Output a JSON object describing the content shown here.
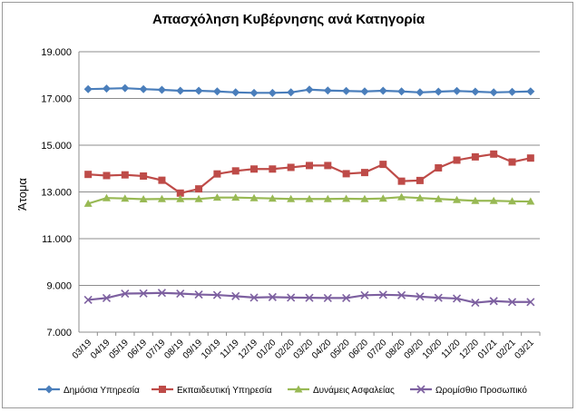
{
  "chart_data": {
    "type": "line",
    "title": "Απασχόληση Κυβέρνησης ανά Κατηγορία",
    "ylabel": "Άτομα",
    "xlabel": "",
    "ylim": [
      7000,
      19000
    ],
    "yticks": [
      7000,
      9000,
      11000,
      13000,
      15000,
      17000,
      19000
    ],
    "ytick_labels": [
      "7.000",
      "9.000",
      "11.000",
      "13.000",
      "15.000",
      "17.000",
      "19.000"
    ],
    "grid": "horizontal",
    "legend_position": "bottom",
    "categories": [
      "03/19",
      "04/19",
      "05/19",
      "06/19",
      "07/19",
      "08/19",
      "09/19",
      "10/19",
      "11/19",
      "12/19",
      "01/20",
      "02/20",
      "03/20",
      "04/20",
      "05/20",
      "06/20",
      "07/20",
      "08/20",
      "09/20",
      "10/20",
      "11/20",
      "12/20",
      "01/21",
      "02/21",
      "03/21"
    ],
    "series": [
      {
        "name": "Δημόσια Υπηρεσία",
        "color": "#4a7ebb",
        "marker": "diamond",
        "values": [
          17400,
          17420,
          17440,
          17400,
          17370,
          17330,
          17330,
          17300,
          17260,
          17240,
          17240,
          17260,
          17380,
          17340,
          17320,
          17300,
          17330,
          17300,
          17260,
          17290,
          17320,
          17290,
          17260,
          17280,
          17300
        ]
      },
      {
        "name": "Εκπαιδευτική Υπηρεσία",
        "color": "#be4b48",
        "marker": "square",
        "values": [
          13750,
          13700,
          13730,
          13680,
          13500,
          12950,
          13130,
          13770,
          13900,
          13980,
          13980,
          14050,
          14130,
          14130,
          13780,
          13830,
          14180,
          13460,
          13490,
          14030,
          14360,
          14500,
          14620,
          14280,
          14450
        ]
      },
      {
        "name": "Δυνάμεις Ασφαλείας",
        "color": "#98b954",
        "marker": "triangle",
        "values": [
          12500,
          12740,
          12720,
          12690,
          12700,
          12700,
          12700,
          12760,
          12760,
          12740,
          12720,
          12700,
          12700,
          12700,
          12710,
          12700,
          12720,
          12780,
          12740,
          12700,
          12660,
          12620,
          12620,
          12600,
          12590
        ]
      },
      {
        "name": "Ωρομίσθιο Προσωπικό",
        "color": "#7d60a0",
        "marker": "x",
        "values": [
          8380,
          8460,
          8650,
          8660,
          8680,
          8650,
          8610,
          8590,
          8540,
          8480,
          8500,
          8480,
          8470,
          8460,
          8460,
          8580,
          8600,
          8580,
          8520,
          8470,
          8440,
          8260,
          8330,
          8290,
          8290
        ]
      }
    ]
  }
}
